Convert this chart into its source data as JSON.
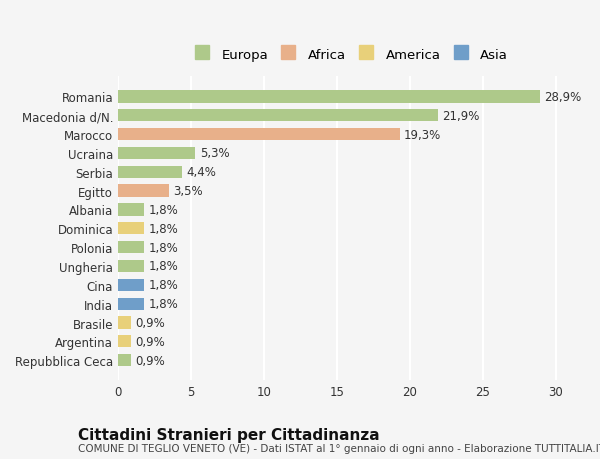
{
  "categories": [
    "Romania",
    "Macedonia d/N.",
    "Marocco",
    "Ucraina",
    "Serbia",
    "Egitto",
    "Albania",
    "Dominica",
    "Polonia",
    "Ungheria",
    "Cina",
    "India",
    "Brasile",
    "Argentina",
    "Repubblica Ceca"
  ],
  "values": [
    28.9,
    21.9,
    19.3,
    5.3,
    4.4,
    3.5,
    1.8,
    1.8,
    1.8,
    1.8,
    1.8,
    1.8,
    0.9,
    0.9,
    0.9
  ],
  "labels": [
    "28,9%",
    "21,9%",
    "19,3%",
    "5,3%",
    "4,4%",
    "3,5%",
    "1,8%",
    "1,8%",
    "1,8%",
    "1,8%",
    "1,8%",
    "1,8%",
    "0,9%",
    "0,9%",
    "0,9%"
  ],
  "continents": [
    "Europa",
    "Europa",
    "Africa",
    "Europa",
    "Europa",
    "Africa",
    "Europa",
    "America",
    "Europa",
    "Europa",
    "Asia",
    "Asia",
    "America",
    "America",
    "Europa"
  ],
  "colors": {
    "Europa": "#aec98a",
    "Africa": "#e8b08a",
    "America": "#e8d07a",
    "Asia": "#6f9ec9"
  },
  "legend_order": [
    "Europa",
    "Africa",
    "America",
    "Asia"
  ],
  "title": "Cittadini Stranieri per Cittadinanza",
  "subtitle": "COMUNE DI TEGLIO VENETO (VE) - Dati ISTAT al 1° gennaio di ogni anno - Elaborazione TUTTITALIA.IT",
  "xlim": [
    0,
    32
  ],
  "xticks": [
    0,
    5,
    10,
    15,
    20,
    25,
    30
  ],
  "background_color": "#f5f5f5",
  "grid_color": "#ffffff",
  "bar_height": 0.65,
  "label_fontsize": 8.5,
  "tick_fontsize": 8.5,
  "title_fontsize": 11,
  "subtitle_fontsize": 7.5
}
